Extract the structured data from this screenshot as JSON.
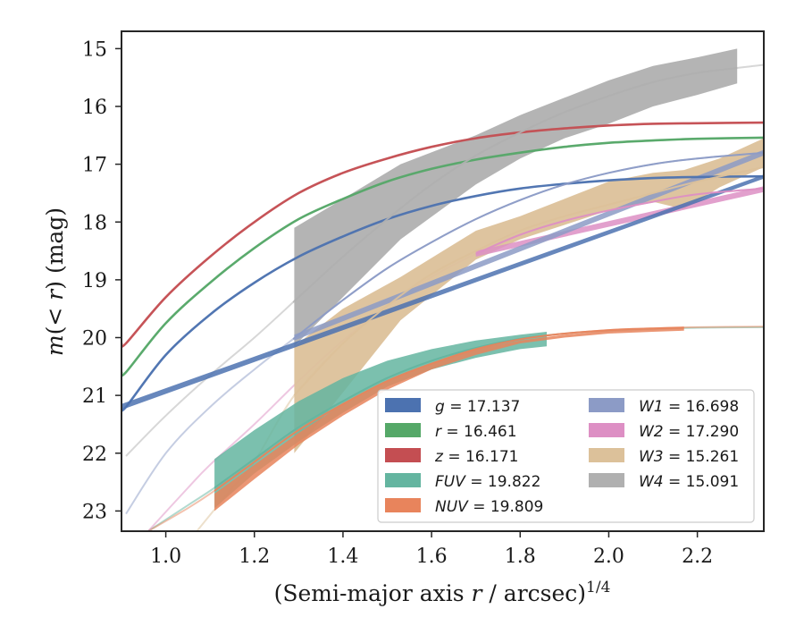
{
  "chart_data": {
    "type": "line",
    "title": "",
    "xlabel_main": "(Semi-major axis ",
    "xlabel_var": "r",
    "xlabel_tail": " / arcsec)",
    "xlabel_exp": "1/4",
    "ylabel_pre": "m",
    "ylabel_mid": "(< ",
    "ylabel_var": "r",
    "ylabel_post": ") (mag)",
    "xlim": [
      0.9,
      2.35
    ],
    "ylim": [
      23.35,
      14.7
    ],
    "y_inverted": true,
    "grid": false,
    "legend_position": "lower right",
    "xticks": [
      1.0,
      1.2,
      1.4,
      1.6,
      1.8,
      2.0,
      2.2
    ],
    "xtick_labels": [
      "1.0",
      "1.2",
      "1.4",
      "1.6",
      "1.8",
      "2.0",
      "2.2"
    ],
    "yticks": [
      15,
      16,
      17,
      18,
      19,
      20,
      21,
      22,
      23
    ],
    "ytick_labels": [
      "15",
      "16",
      "17",
      "18",
      "19",
      "20",
      "21",
      "22",
      "23"
    ],
    "series": [
      {
        "name": "g",
        "value": "17.137",
        "color": "#4c72b0",
        "model": [
          [
            0.91,
            21.2
          ],
          [
            1.0,
            20.3
          ],
          [
            1.1,
            19.6
          ],
          [
            1.2,
            19.05
          ],
          [
            1.3,
            18.6
          ],
          [
            1.4,
            18.25
          ],
          [
            1.5,
            17.95
          ],
          [
            1.6,
            17.72
          ],
          [
            1.7,
            17.55
          ],
          [
            1.8,
            17.42
          ],
          [
            1.9,
            17.34
          ],
          [
            2.0,
            17.28
          ],
          [
            2.1,
            17.24
          ],
          [
            2.2,
            17.22
          ],
          [
            2.35,
            17.21
          ]
        ],
        "band_x": [
          0.9,
          2.35
        ],
        "band_upper": [
          21.15,
          17.18
        ],
        "band_lower": [
          21.25,
          17.25
        ]
      },
      {
        "name": "r",
        "value": "16.461",
        "color": "#55a868",
        "model": [
          [
            0.91,
            20.6
          ],
          [
            1.0,
            19.75
          ],
          [
            1.1,
            19.05
          ],
          [
            1.2,
            18.45
          ],
          [
            1.3,
            17.95
          ],
          [
            1.4,
            17.6
          ],
          [
            1.5,
            17.3
          ],
          [
            1.6,
            17.08
          ],
          [
            1.7,
            16.92
          ],
          [
            1.8,
            16.8
          ],
          [
            1.9,
            16.7
          ],
          [
            2.0,
            16.63
          ],
          [
            2.1,
            16.59
          ],
          [
            2.2,
            16.56
          ],
          [
            2.35,
            16.54
          ]
        ]
      },
      {
        "name": "z",
        "value": "16.171",
        "color": "#c44e52",
        "model": [
          [
            0.91,
            20.1
          ],
          [
            1.0,
            19.3
          ],
          [
            1.1,
            18.6
          ],
          [
            1.2,
            18.0
          ],
          [
            1.3,
            17.5
          ],
          [
            1.4,
            17.15
          ],
          [
            1.5,
            16.9
          ],
          [
            1.6,
            16.7
          ],
          [
            1.7,
            16.55
          ],
          [
            1.8,
            16.45
          ],
          [
            1.9,
            16.38
          ],
          [
            2.0,
            16.33
          ],
          [
            2.1,
            16.3
          ],
          [
            2.2,
            16.29
          ],
          [
            2.35,
            16.28
          ]
        ]
      },
      {
        "name": "FUV",
        "value": "19.822",
        "color": "#64b5a0",
        "model": [
          [
            0.96,
            23.35
          ],
          [
            1.05,
            22.9
          ],
          [
            1.11,
            22.6
          ],
          [
            1.2,
            22.1
          ],
          [
            1.3,
            21.55
          ],
          [
            1.4,
            21.1
          ],
          [
            1.5,
            20.7
          ],
          [
            1.6,
            20.4
          ],
          [
            1.7,
            20.18
          ],
          [
            1.8,
            20.02
          ],
          [
            1.9,
            19.93
          ],
          [
            2.0,
            19.88
          ],
          [
            2.1,
            19.85
          ],
          [
            2.2,
            19.83
          ],
          [
            2.35,
            19.82
          ]
        ],
        "band_x": [
          1.11,
          1.2,
          1.3,
          1.4,
          1.5,
          1.6,
          1.7,
          1.8,
          1.86
        ],
        "band_upper": [
          22.1,
          21.6,
          21.1,
          20.7,
          20.4,
          20.2,
          20.05,
          19.95,
          19.9
        ],
        "band_lower": [
          22.95,
          22.35,
          21.8,
          21.3,
          20.85,
          20.55,
          20.35,
          20.2,
          20.15
        ]
      },
      {
        "name": "NUV",
        "value": "19.809",
        "color": "#e8845c",
        "model": [
          [
            0.96,
            23.35
          ],
          [
            1.05,
            22.95
          ],
          [
            1.11,
            22.65
          ],
          [
            1.2,
            22.15
          ],
          [
            1.3,
            21.6
          ],
          [
            1.4,
            21.15
          ],
          [
            1.5,
            20.75
          ],
          [
            1.6,
            20.45
          ],
          [
            1.7,
            20.2
          ],
          [
            1.8,
            20.03
          ],
          [
            1.9,
            19.93
          ],
          [
            2.0,
            19.87
          ],
          [
            2.1,
            19.84
          ],
          [
            2.2,
            19.82
          ],
          [
            2.35,
            19.81
          ]
        ],
        "band_x": [
          1.11,
          1.2,
          1.3,
          1.4,
          1.5,
          1.6,
          1.7,
          1.8,
          1.9,
          2.0,
          2.1,
          2.17
        ],
        "band_upper": [
          22.7,
          22.2,
          21.65,
          21.15,
          20.75,
          20.45,
          20.2,
          20.05,
          19.95,
          19.88,
          19.85,
          19.82
        ],
        "band_lower": [
          23.0,
          22.45,
          21.85,
          21.35,
          20.9,
          20.55,
          20.3,
          20.1,
          20.0,
          19.93,
          19.9,
          19.88
        ]
      },
      {
        "name": "W1",
        "value": "16.698",
        "color": "#8c9bc6",
        "model": [
          [
            0.91,
            23.05
          ],
          [
            1.0,
            22.0
          ],
          [
            1.1,
            21.2
          ],
          [
            1.2,
            20.55
          ],
          [
            1.3,
            19.95
          ],
          [
            1.4,
            19.35
          ],
          [
            1.5,
            18.8
          ],
          [
            1.6,
            18.35
          ],
          [
            1.7,
            17.95
          ],
          [
            1.8,
            17.62
          ],
          [
            1.9,
            17.35
          ],
          [
            2.0,
            17.15
          ],
          [
            2.1,
            17.0
          ],
          [
            2.2,
            16.9
          ],
          [
            2.35,
            16.8
          ]
        ],
        "band_x": [
          1.29,
          2.35
        ],
        "band_upper": [
          19.95,
          16.75
        ],
        "band_lower": [
          20.05,
          16.85
        ]
      },
      {
        "name": "W2",
        "value": "17.290",
        "color": "#dd8fc4",
        "model": [
          [
            0.96,
            23.35
          ],
          [
            1.05,
            22.6
          ],
          [
            1.1,
            22.2
          ],
          [
            1.2,
            21.5
          ],
          [
            1.3,
            20.75
          ],
          [
            1.4,
            20.05
          ],
          [
            1.5,
            19.45
          ],
          [
            1.6,
            18.95
          ],
          [
            1.7,
            18.55
          ],
          [
            1.8,
            18.22
          ],
          [
            1.9,
            17.98
          ],
          [
            2.0,
            17.8
          ],
          [
            2.1,
            17.65
          ],
          [
            2.2,
            17.52
          ],
          [
            2.35,
            17.42
          ]
        ],
        "band_x": [
          1.7,
          2.35
        ],
        "band_upper": [
          18.5,
          17.38
        ],
        "band_lower": [
          18.6,
          17.48
        ]
      },
      {
        "name": "W3",
        "value": "15.261",
        "color": "#dcc19a",
        "model": [
          [
            1.07,
            23.35
          ],
          [
            1.15,
            22.6
          ],
          [
            1.2,
            22.15
          ],
          [
            1.29,
            21.0
          ],
          [
            1.4,
            20.1
          ],
          [
            1.5,
            19.45
          ],
          [
            1.6,
            18.9
          ],
          [
            1.7,
            18.5
          ],
          [
            1.8,
            18.15
          ],
          [
            1.9,
            17.9
          ],
          [
            2.0,
            17.7
          ],
          [
            2.1,
            17.5
          ],
          [
            2.2,
            17.3
          ],
          [
            2.35,
            17.05
          ]
        ],
        "band_x": [
          1.29,
          1.4,
          1.53,
          1.7,
          1.8,
          1.9,
          2.0,
          2.1,
          2.17,
          2.25,
          2.35
        ],
        "band_upper": [
          20.15,
          19.5,
          18.95,
          18.15,
          17.9,
          17.6,
          17.3,
          17.15,
          17.1,
          16.9,
          16.55
        ],
        "band_lower": [
          22.0,
          20.95,
          19.7,
          18.65,
          18.3,
          18.05,
          17.8,
          17.65,
          17.78,
          17.4,
          17.05
        ]
      },
      {
        "name": "W4",
        "value": "15.091",
        "color": "#b0b0b0",
        "model": [
          [
            0.91,
            22.05
          ],
          [
            1.0,
            21.35
          ],
          [
            1.1,
            20.65
          ],
          [
            1.2,
            20.0
          ],
          [
            1.3,
            19.3
          ],
          [
            1.4,
            18.6
          ],
          [
            1.5,
            17.95
          ],
          [
            1.6,
            17.35
          ],
          [
            1.7,
            16.85
          ],
          [
            1.8,
            16.45
          ],
          [
            1.9,
            16.1
          ],
          [
            2.0,
            15.82
          ],
          [
            2.1,
            15.58
          ],
          [
            2.2,
            15.42
          ],
          [
            2.35,
            15.28
          ]
        ],
        "band_x": [
          1.29,
          1.4,
          1.53,
          1.7,
          1.8,
          1.9,
          2.0,
          2.1,
          2.2,
          2.29
        ],
        "band_upper": [
          18.1,
          17.6,
          17.0,
          16.5,
          16.15,
          15.85,
          15.55,
          15.3,
          15.15,
          15.0
        ],
        "band_lower": [
          20.15,
          19.3,
          18.3,
          17.35,
          16.9,
          16.55,
          16.3,
          16.0,
          15.8,
          15.6
        ]
      }
    ]
  }
}
